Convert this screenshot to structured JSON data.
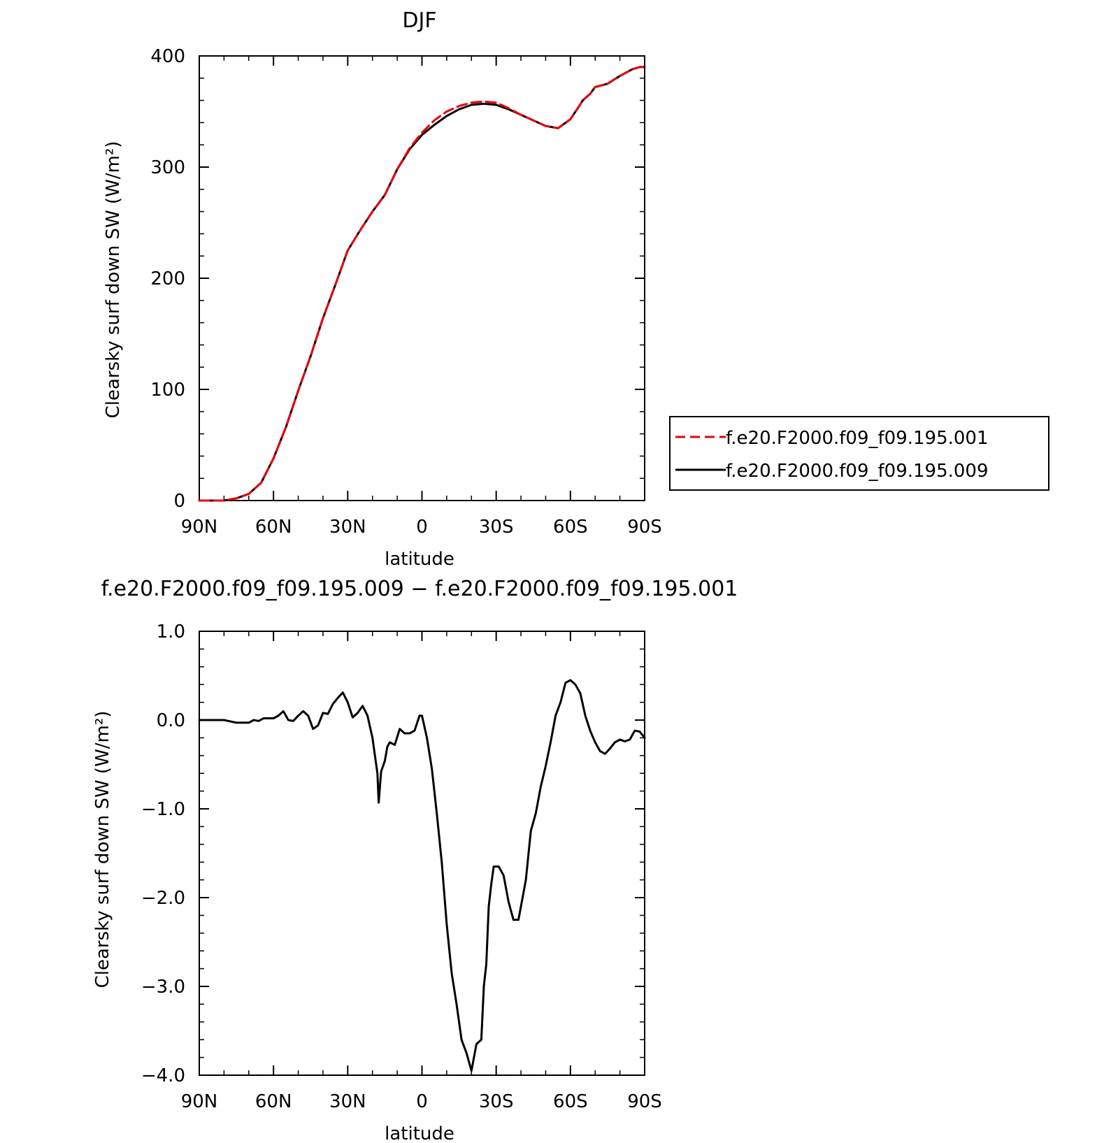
{
  "chart_data": [
    {
      "type": "line",
      "title": "DJF",
      "xlabel": "latitude",
      "ylabel": "Clearsky surf down SW (W/m²)",
      "xlim": [
        90,
        -90
      ],
      "ylim": [
        0,
        400
      ],
      "x_ticks": [
        {
          "value": 90,
          "label": "90N"
        },
        {
          "value": 60,
          "label": "60N"
        },
        {
          "value": 30,
          "label": "30N"
        },
        {
          "value": 0,
          "label": "0"
        },
        {
          "value": -30,
          "label": "30S"
        },
        {
          "value": -60,
          "label": "60S"
        },
        {
          "value": -90,
          "label": "90S"
        }
      ],
      "y_ticks": [
        {
          "value": 0,
          "label": "0"
        },
        {
          "value": 100,
          "label": "100"
        },
        {
          "value": 200,
          "label": "200"
        },
        {
          "value": 300,
          "label": "300"
        },
        {
          "value": 400,
          "label": "400"
        }
      ],
      "legend_position": "right",
      "series": [
        {
          "name": "f.e20.F2000.f09_f09.195.001",
          "color": "#e8000b",
          "style": "dashed",
          "x": [
            90,
            85,
            80,
            75,
            70,
            65,
            60,
            55,
            50,
            45,
            40,
            35,
            30,
            25,
            20,
            15,
            10,
            5,
            0,
            -5,
            -10,
            -15,
            -20,
            -25,
            -30,
            -35,
            -40,
            -45,
            -50,
            -55,
            -60,
            -63,
            -65,
            -68,
            -70,
            -75,
            -80,
            -85,
            -88,
            -90
          ],
          "y": [
            0,
            0,
            0,
            2,
            6,
            16,
            38,
            66,
            99,
            130,
            164,
            194,
            225,
            243,
            260,
            275,
            298,
            317,
            331,
            342,
            350,
            355,
            358,
            359,
            358,
            353,
            347,
            342,
            337,
            335,
            343,
            353,
            360,
            366,
            372,
            375,
            382,
            388,
            390,
            390
          ]
        },
        {
          "name": "f.e20.F2000.f09_f09.195.009",
          "color": "#000000",
          "style": "solid",
          "x": [
            90,
            85,
            80,
            75,
            70,
            65,
            60,
            55,
            50,
            45,
            40,
            35,
            30,
            25,
            20,
            15,
            10,
            5,
            0,
            -5,
            -10,
            -15,
            -20,
            -25,
            -30,
            -35,
            -40,
            -45,
            -50,
            -55,
            -60,
            -63,
            -65,
            -68,
            -70,
            -75,
            -80,
            -85,
            -88,
            -90
          ],
          "y": [
            0,
            0,
            0,
            2,
            6,
            16,
            38,
            66,
            99,
            130,
            164,
            194,
            225,
            243,
            260,
            275,
            298,
            316,
            329,
            338,
            346,
            352,
            356,
            357,
            356,
            352,
            347,
            342,
            337,
            335,
            343,
            353,
            360,
            366,
            372,
            375,
            382,
            388,
            390,
            390
          ]
        }
      ]
    },
    {
      "type": "line",
      "title": "f.e20.F2000.f09_f09.195.009 − f.e20.F2000.f09_f09.195.001",
      "xlabel": "latitude",
      "ylabel": "Clearsky surf down SW (W/m²)",
      "xlim": [
        90,
        -90
      ],
      "ylim": [
        -4.0,
        1.0
      ],
      "x_ticks": [
        {
          "value": 90,
          "label": "90N"
        },
        {
          "value": 60,
          "label": "60N"
        },
        {
          "value": 30,
          "label": "30N"
        },
        {
          "value": 0,
          "label": "0"
        },
        {
          "value": -30,
          "label": "30S"
        },
        {
          "value": -60,
          "label": "60S"
        },
        {
          "value": -90,
          "label": "90S"
        }
      ],
      "y_ticks": [
        {
          "value": 1.0,
          "label": "1.0"
        },
        {
          "value": 0.0,
          "label": "0.0"
        },
        {
          "value": -1.0,
          "label": "−1.0"
        },
        {
          "value": -2.0,
          "label": "−2.0"
        },
        {
          "value": -3.0,
          "label": "−3.0"
        },
        {
          "value": -4.0,
          "label": "−4.0"
        }
      ],
      "series": [
        {
          "color": "#000000",
          "style": "solid",
          "x": [
            90,
            80,
            75,
            70,
            68,
            66,
            64,
            62,
            60,
            58,
            56,
            54,
            52,
            50,
            48,
            46,
            44,
            42,
            40,
            38,
            36,
            34,
            32,
            30,
            28,
            26,
            24,
            22,
            20,
            18,
            17.5,
            16.5,
            15,
            14,
            13,
            11,
            9,
            7,
            5,
            3,
            1,
            0,
            -2,
            -4,
            -6,
            -8,
            -10,
            -12,
            -14,
            -16,
            -18,
            -20,
            -22,
            -24,
            -25,
            -26,
            -27,
            -28,
            -29,
            -31,
            -33,
            -35,
            -37,
            -39,
            -41,
            -42,
            -44,
            -46,
            -48,
            -50,
            -52,
            -54,
            -56,
            -58,
            -60,
            -62,
            -64,
            -66,
            -68,
            -70,
            -72,
            -74,
            -76,
            -78,
            -80,
            -82,
            -84,
            -86,
            -88,
            -90
          ],
          "y": [
            0,
            0,
            -0.03,
            -0.03,
            0.0,
            -0.01,
            0.02,
            0.02,
            0.02,
            0.05,
            0.1,
            0.0,
            -0.01,
            0.05,
            0.1,
            0.05,
            -0.1,
            -0.06,
            0.08,
            0.07,
            0.18,
            0.25,
            0.31,
            0.2,
            0.03,
            0.08,
            0.16,
            0.05,
            -0.2,
            -0.6,
            -0.93,
            -0.58,
            -0.46,
            -0.3,
            -0.25,
            -0.28,
            -0.1,
            -0.15,
            -0.15,
            -0.12,
            0.05,
            0.05,
            -0.2,
            -0.55,
            -1.05,
            -1.6,
            -2.3,
            -2.85,
            -3.2,
            -3.6,
            -3.75,
            -3.95,
            -3.65,
            -3.6,
            -3.0,
            -2.75,
            -2.1,
            -1.85,
            -1.65,
            -1.65,
            -1.75,
            -2.05,
            -2.25,
            -2.25,
            -1.95,
            -1.8,
            -1.25,
            -1.05,
            -0.75,
            -0.52,
            -0.25,
            0.05,
            0.2,
            0.42,
            0.45,
            0.4,
            0.3,
            0.05,
            -0.12,
            -0.25,
            -0.35,
            -0.38,
            -0.32,
            -0.25,
            -0.22,
            -0.24,
            -0.22,
            -0.12,
            -0.13,
            -0.2
          ]
        }
      ]
    }
  ]
}
